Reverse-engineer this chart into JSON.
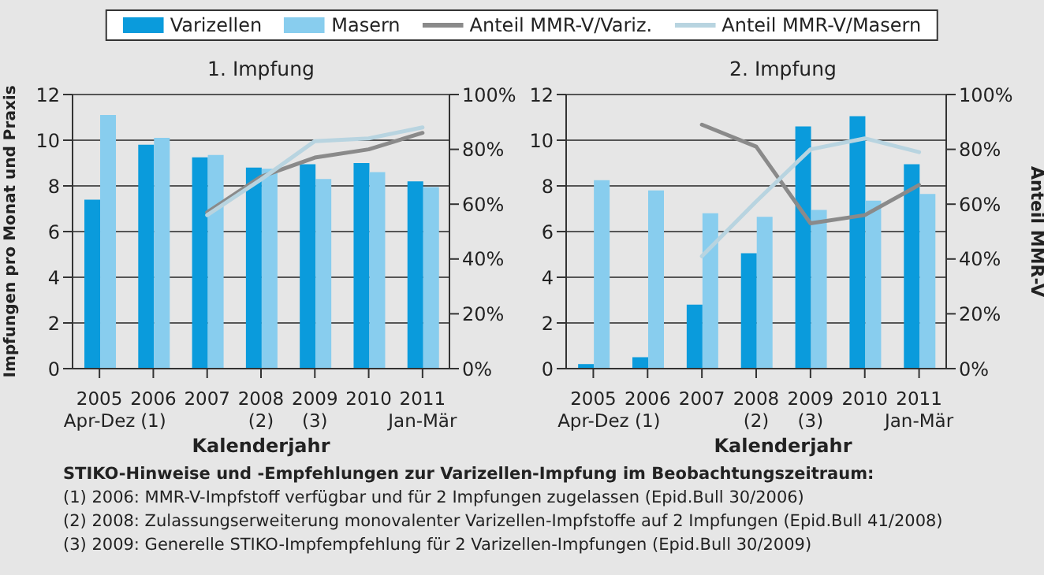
{
  "chart_data": [
    {
      "type": "bar",
      "title": "1. Impfung",
      "xlabel": "Kalenderjahr",
      "ylabel": "Impfungen pro Monat und Praxis",
      "categories": [
        "2005\nApr-Dez",
        "2006\n(1)",
        "2007",
        "2008\n(2)",
        "2009\n(3)",
        "2010",
        "2011\nJan-Mär"
      ],
      "series": [
        {
          "name": "Varizellen",
          "color": "#0a9bdc",
          "values": [
            7.4,
            9.8,
            9.25,
            8.8,
            8.95,
            9.0,
            8.2
          ]
        },
        {
          "name": "Masern",
          "color": "#88cdee",
          "values": [
            11.1,
            10.1,
            9.35,
            8.75,
            8.3,
            8.6,
            7.95
          ]
        },
        {
          "name": "Anteil MMR-V/Variz.",
          "type": "line",
          "axis": "y2",
          "color": "#8a8a8a",
          "values": [
            null,
            null,
            57,
            70,
            77,
            80,
            86
          ]
        },
        {
          "name": "Anteil MMR-V/Masern",
          "type": "line",
          "axis": "y2",
          "color": "#b8d4e0",
          "values": [
            null,
            null,
            56,
            69,
            83,
            84,
            88
          ]
        }
      ],
      "ylim": [
        0,
        12
      ],
      "yticks": [
        0,
        2,
        4,
        6,
        8,
        10,
        12
      ],
      "y2lim": [
        0,
        100
      ],
      "y2ticks": [
        {
          "value": 0,
          "label": "0%"
        },
        {
          "value": 20,
          "label": "20%"
        },
        {
          "value": 40,
          "label": "40%"
        },
        {
          "value": 60,
          "label": "60%"
        },
        {
          "value": 80,
          "label": "80%"
        },
        {
          "value": 100,
          "label": "100%"
        }
      ],
      "grid": "y",
      "legend": "top",
      "annotations": [
        "STIKO-Hinweise und -Empfehlungen zur Varizellen-Impfung im Beobachtungszeitraum:",
        "(1) 2006: MMR-V-Impfstoff  verfügbar und für 2 Impfungen zugelassen (Epid.Bull 30/2006)",
        "(2) 2008: Zulassungserweiterung monovalenter Varizellen-Impfstoffe auf 2 Impfungen (Epid.Bull 41/2008)",
        "(3) 2009: Generelle  STIKO-Impfempfehlung für 2 Varizellen-Impfungen (Epid.Bull 30/2009)"
      ]
    },
    {
      "type": "bar",
      "title": "2. Impfung",
      "xlabel": "Kalenderjahr",
      "y2label": "Anteil MMR-V",
      "categories": [
        "2005\nApr-Dez",
        "2006\n(1)",
        "2007",
        "2008\n(2)",
        "2009\n(3)",
        "2010",
        "2011\nJan-Mär"
      ],
      "series": [
        {
          "color": "#0a9bdc",
          "values": [
            0.2,
            0.5,
            2.8,
            5.05,
            10.6,
            11.05,
            8.95
          ]
        },
        {
          "color": "#88cdee",
          "values": [
            8.25,
            7.8,
            6.8,
            6.65,
            6.95,
            7.35,
            7.65
          ]
        },
        {
          "type": "line",
          "axis": "y2",
          "color": "#8a8a8a",
          "values": [
            null,
            null,
            89,
            81,
            53,
            56,
            67
          ]
        },
        {
          "type": "line",
          "axis": "y2",
          "color": "#b8d4e0",
          "values": [
            null,
            null,
            41,
            61,
            80,
            84,
            79
          ]
        }
      ],
      "ylim": [
        0,
        12
      ],
      "yticks": [
        0,
        2,
        4,
        6,
        8,
        10,
        12
      ],
      "y2lim": [
        0,
        100
      ],
      "y2ticks": [
        {
          "value": 0,
          "label": "0%"
        },
        {
          "value": 20,
          "label": "20%"
        },
        {
          "value": 40,
          "label": "40%"
        },
        {
          "value": 60,
          "label": "60%"
        },
        {
          "value": 80,
          "label": "80%"
        },
        {
          "value": 100,
          "label": "100%"
        }
      ],
      "grid": "y"
    }
  ]
}
